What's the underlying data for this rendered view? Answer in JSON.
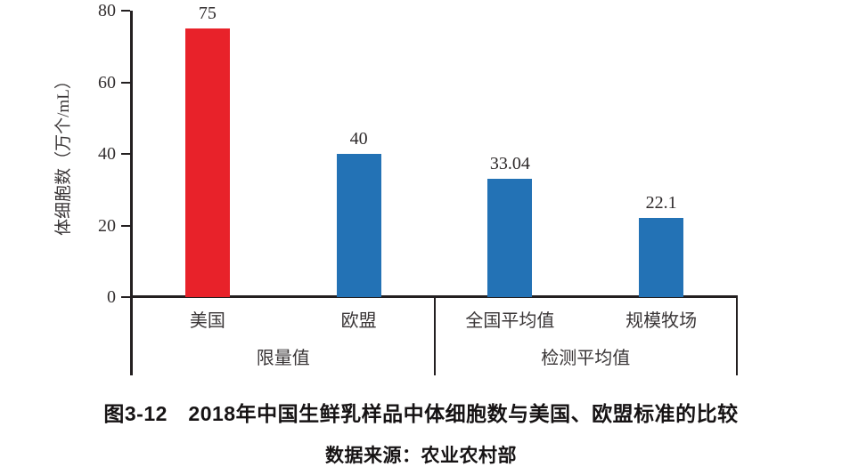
{
  "colors": {
    "bar_red": "#e8222a",
    "bar_blue": "#2372b5",
    "axis": "#231f20"
  },
  "chart_data": {
    "type": "bar",
    "title": "图3-12　2018年中国生鲜乳样品中体细胞数与美国、欧盟标准的比较",
    "source_note": "数据来源：农业农村部",
    "ylabel": "体细胞数（万个/mL）",
    "ylim": [
      0,
      80
    ],
    "yticks": [
      0,
      20,
      40,
      60,
      80
    ],
    "categories": [
      "美国",
      "欧盟",
      "全国平均值",
      "规模牧场"
    ],
    "values": [
      75,
      40,
      33.04,
      22.1
    ],
    "value_labels": [
      "75",
      "40",
      "33.04",
      "22.1"
    ],
    "bar_colors": [
      "#e8222a",
      "#2372b5",
      "#2372b5",
      "#2372b5"
    ],
    "groups": [
      {
        "label": "限量值",
        "from": 0,
        "to": 1
      },
      {
        "label": "检测平均值",
        "from": 2,
        "to": 3
      }
    ],
    "grid": false,
    "legend": "none"
  }
}
